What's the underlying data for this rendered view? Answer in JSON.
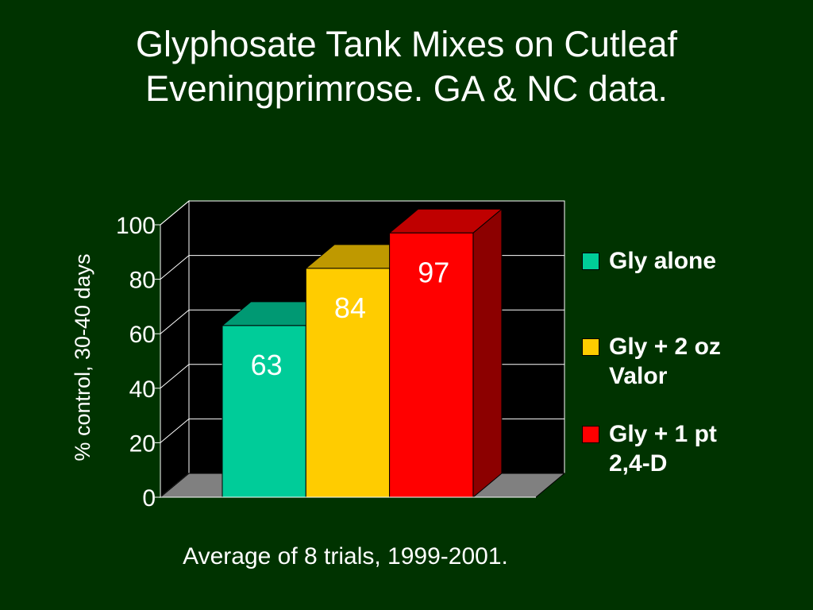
{
  "slide": {
    "title_lines": [
      "Glyphosate Tank Mixes on Cutleaf",
      "Eveningprimrose.  GA & NC data."
    ],
    "footnote": "Average of 8 trials, 1999-2001.",
    "background": "#003300"
  },
  "chart_data": {
    "type": "bar",
    "style": "3d",
    "categories": [
      "Gly alone",
      "Gly + 2 oz Valor",
      "Gly + 1 pt 2,4-D"
    ],
    "values": [
      63,
      84,
      97
    ],
    "data_labels": [
      "63",
      "84",
      "97"
    ],
    "series": [
      {
        "name": "Gly alone",
        "value": 63,
        "color": "#00CC99",
        "legend_lines": [
          "Gly alone"
        ]
      },
      {
        "name": "Gly + 2 oz Valor",
        "value": 84,
        "color": "#FFCC00",
        "legend_lines": [
          "Gly + 2 oz",
          "Valor"
        ]
      },
      {
        "name": "Gly + 1 pt 2,4-D",
        "value": 97,
        "color": "#FF0000",
        "legend_lines": [
          "Gly + 1 pt",
          "2,4-D"
        ]
      }
    ],
    "ylabel": "% control, 30-40 days",
    "ylim": [
      0,
      100
    ],
    "yticks": [
      0,
      20,
      40,
      60,
      80,
      100
    ],
    "ytick_labels": [
      "0",
      "20",
      "40",
      "60",
      "80",
      "100"
    ],
    "grid": true,
    "legend_position": "right",
    "plot_background": "#000000",
    "floor_color": "#808080"
  }
}
